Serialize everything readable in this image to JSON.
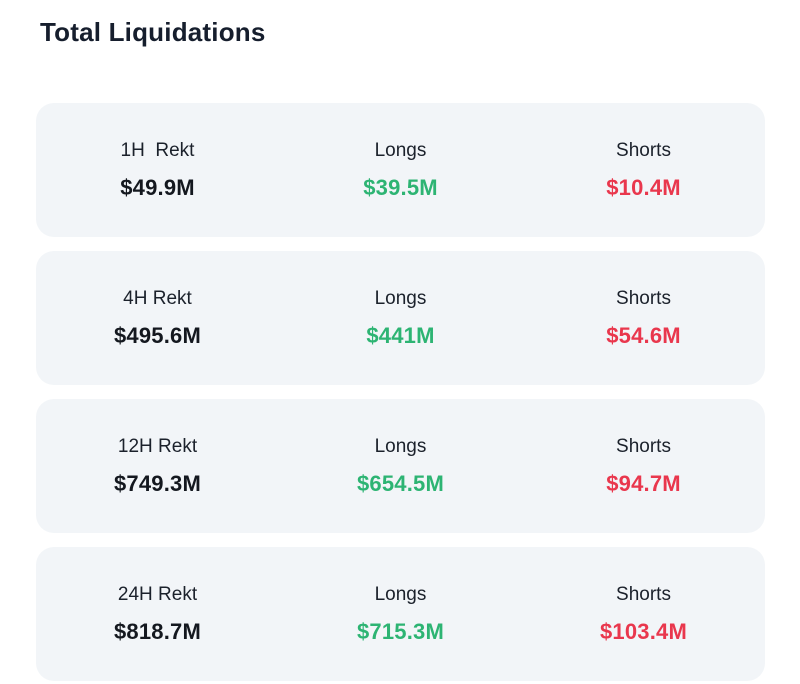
{
  "title": "Total Liquidations",
  "labels": {
    "longs": "Longs",
    "shorts": "Shorts"
  },
  "colors": {
    "long_green": "#2db473",
    "short_red": "#e9374d",
    "total_dark": "#14181f",
    "card_background": "#f2f5f8",
    "title_dark": "#161e2d"
  },
  "rows": [
    {
      "period_label": "1H  Rekt",
      "rekt_value": "$49.9M",
      "longs_value": "$39.5M",
      "shorts_value": "$10.4M"
    },
    {
      "period_label": "4H Rekt",
      "rekt_value": "$495.6M",
      "longs_value": "$441M",
      "shorts_value": "$54.6M"
    },
    {
      "period_label": "12H Rekt",
      "rekt_value": "$749.3M",
      "longs_value": "$654.5M",
      "shorts_value": "$94.7M"
    },
    {
      "period_label": "24H Rekt",
      "rekt_value": "$818.7M",
      "longs_value": "$715.3M",
      "shorts_value": "$103.4M"
    }
  ]
}
